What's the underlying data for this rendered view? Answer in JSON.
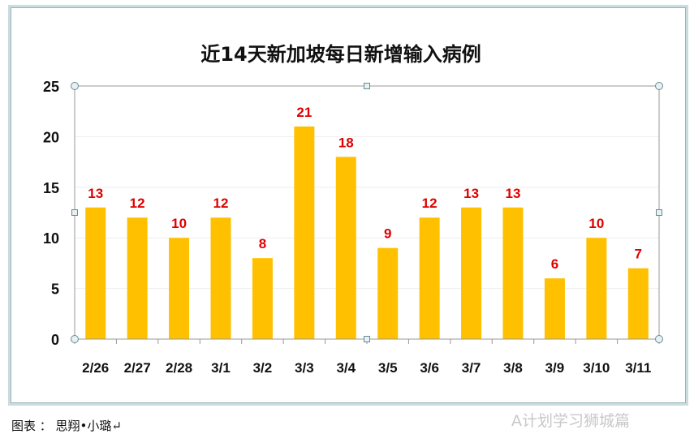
{
  "chart_data": {
    "type": "bar",
    "title": "近14天新加坡每日新增输入病例",
    "categories": [
      "2/26",
      "2/27",
      "2/28",
      "3/1",
      "3/2",
      "3/3",
      "3/4",
      "3/5",
      "3/6",
      "3/7",
      "3/8",
      "3/9",
      "3/10",
      "3/11"
    ],
    "values": [
      13,
      12,
      10,
      12,
      8,
      21,
      18,
      9,
      12,
      13,
      13,
      6,
      10,
      7
    ],
    "ylim": [
      0,
      25
    ],
    "yticks": [
      0,
      5,
      10,
      15,
      20,
      25
    ],
    "grid": true,
    "legend": "none",
    "data_labels": true,
    "bar_color": "#ffc000",
    "label_color": "#e00000"
  },
  "caption": "图表 ： 思翔•小璐↵",
  "watermark": "A计划学习狮城篇"
}
